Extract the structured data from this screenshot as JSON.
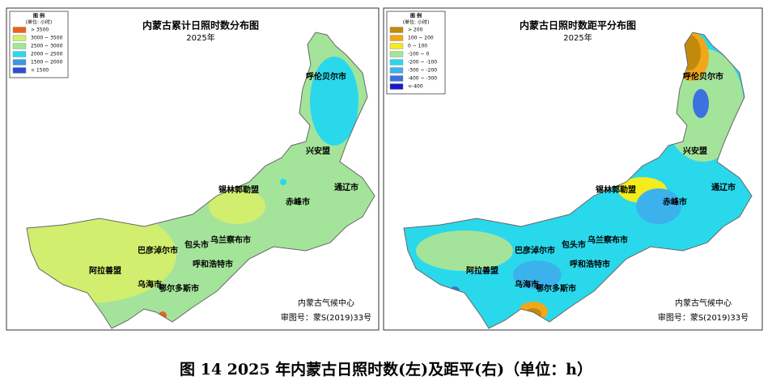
{
  "maps": [
    {
      "title": "内蒙古累计日照时数分布图",
      "subtitle": "2025年",
      "legend": {
        "title": "图 例",
        "unit": "(单位: 小时)",
        "items": [
          {
            "label": "> 3500",
            "color": "#e8641e"
          },
          {
            "label": "3000 ~ 3500",
            "color": "#d2ee6e"
          },
          {
            "label": "2500 ~ 3000",
            "color": "#a4e49a"
          },
          {
            "label": "2000 ~ 2500",
            "color": "#2ad8ec"
          },
          {
            "label": "1500 ~ 2000",
            "color": "#3c96e6"
          },
          {
            "label": "< 1500",
            "color": "#2a4fd6"
          }
        ]
      },
      "places": [
        "呼伦贝尔市",
        "兴安盟",
        "锡林郭勒盟",
        "通辽市",
        "赤峰市",
        "乌兰察布市",
        "包头市",
        "巴彦淖尔市",
        "呼和浩特市",
        "阿拉善盟",
        "乌海市",
        "鄂尔多斯市"
      ],
      "credit": "内蒙古气候中心",
      "approval": "审图号：蒙S(2019)33号"
    },
    {
      "title": "内蒙古日照时数距平分布图",
      "subtitle": "2025年",
      "legend": {
        "title": "图 例",
        "unit": "(单位: 小时)",
        "items": [
          {
            "label": "> 200",
            "color": "#c28a0c"
          },
          {
            "label": "100 ~ 200",
            "color": "#f0a818"
          },
          {
            "label": "0 ~ 100",
            "color": "#f4ec1c"
          },
          {
            "label": "-100 ~ 0",
            "color": "#a4e49a"
          },
          {
            "label": "-200 ~ -100",
            "color": "#2ad8ec"
          },
          {
            "label": "-300 ~ -200",
            "color": "#3cb2ec"
          },
          {
            "label": "-400 ~ -300",
            "color": "#3c72e0"
          },
          {
            "label": "<-400",
            "color": "#1818c8"
          }
        ]
      },
      "places": [
        "呼伦贝尔市",
        "兴安盟",
        "锡林郭勒盟",
        "通辽市",
        "赤峰市",
        "乌兰察布市",
        "包头市",
        "巴彦淖尔市",
        "呼和浩特市",
        "阿拉善盟",
        "乌海市",
        "鄂尔多斯市"
      ],
      "credit": "内蒙古气候中心",
      "approval": "审图号：蒙S(2019)33号"
    }
  ],
  "caption": "图 14   2025 年内蒙古日照时数(左)及距平(右)（单位：h）"
}
